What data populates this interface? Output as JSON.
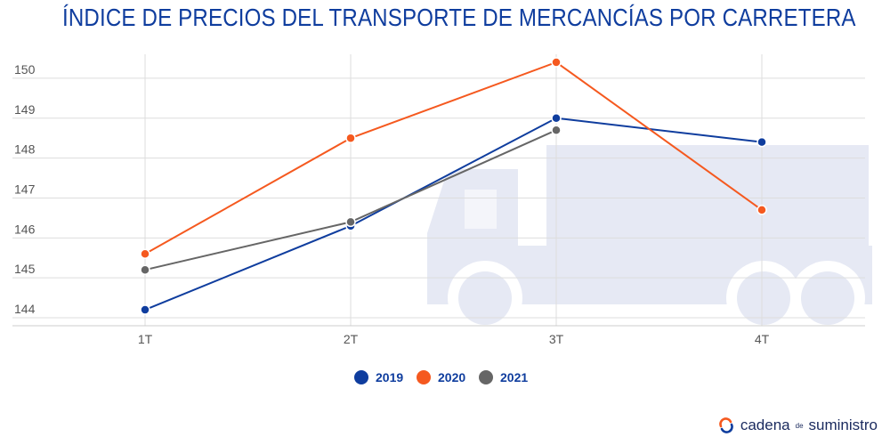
{
  "title": "ÍNDICE DE PRECIOS DEL TRANSPORTE DE MERCANCÍAS POR CARRETERA",
  "brand": {
    "part1": "cadena",
    "part2": "de",
    "part3": "suministro"
  },
  "chart_data": {
    "type": "line",
    "title": "ÍNDICE DE PRECIOS DEL TRANSPORTE DE MERCANCÍAS POR CARRETERA",
    "categories": [
      "1T",
      "2T",
      "3T",
      "4T"
    ],
    "ylim": [
      143.8,
      150.6
    ],
    "yticks": [
      144,
      145,
      146,
      147,
      148,
      149,
      150
    ],
    "grid": true,
    "legend": "bottom",
    "series": [
      {
        "name": "2019",
        "color": "#0f3d9e",
        "values": [
          144.2,
          146.3,
          149.0,
          148.4
        ]
      },
      {
        "name": "2020",
        "color": "#f5591f",
        "values": [
          145.6,
          148.5,
          150.4,
          146.7
        ]
      },
      {
        "name": "2021",
        "color": "#666666",
        "values": [
          145.2,
          146.4,
          148.7,
          null
        ]
      }
    ]
  }
}
